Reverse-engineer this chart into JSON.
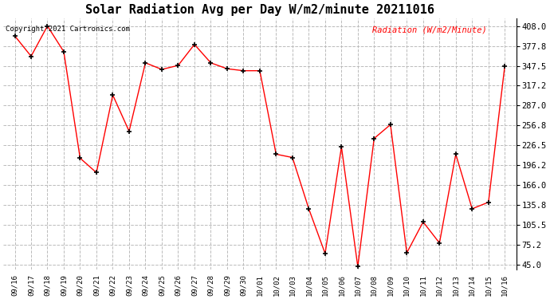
{
  "title": "Solar Radiation Avg per Day W/m2/minute 20211016",
  "copyright_text": "Copyright 2021 Cartronics.com",
  "legend_label": "Radiation (W/m2/Minute)",
  "dates": [
    "09/16",
    "09/17",
    "09/18",
    "09/19",
    "09/20",
    "09/21",
    "09/22",
    "09/23",
    "09/24",
    "09/25",
    "09/26",
    "09/27",
    "09/28",
    "09/29",
    "09/30",
    "10/01",
    "10/02",
    "10/03",
    "10/04",
    "10/05",
    "10/06",
    "10/07",
    "10/08",
    "10/09",
    "10/10",
    "10/11",
    "10/12",
    "10/13",
    "10/14",
    "10/15",
    "10/16"
  ],
  "values": [
    393.0,
    362.0,
    408.0,
    369.0,
    207.0,
    185.0,
    303.0,
    248.0,
    352.0,
    342.0,
    348.0,
    380.0,
    352.0,
    343.0,
    340.0,
    340.0,
    213.0,
    208.0,
    130.0,
    62.0,
    224.0,
    42.0,
    237.0,
    258.0,
    63.0,
    110.0,
    78.0,
    213.0,
    130.0,
    140.0,
    347.5
  ],
  "line_color": "red",
  "marker_color": "black",
  "grid_color": "#bbbbbb",
  "background_color": "white",
  "title_fontsize": 11,
  "yticks": [
    45.0,
    75.2,
    105.5,
    135.8,
    166.0,
    196.2,
    226.5,
    256.8,
    287.0,
    317.2,
    347.5,
    377.8,
    408.0
  ],
  "ylim": [
    38.0,
    420.0
  ]
}
